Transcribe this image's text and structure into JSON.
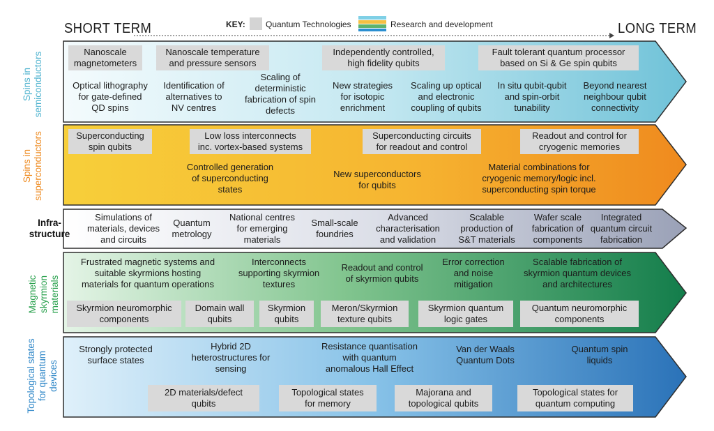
{
  "header": {
    "short_term": "SHORT TERM",
    "long_term": "LONG TERM",
    "key_label": "KEY:",
    "key_quantum": "Quantum Technologies",
    "key_research": "Research and development"
  },
  "colors": {
    "semi": "#7ec9dc",
    "super": "#f39c1e",
    "infra": "#a6acc0",
    "skyr": "#1f8f56",
    "topo": "#2f7fc4",
    "box": "#d9d9d9"
  },
  "rows": {
    "semiconductors": {
      "label": "Spins in\nsemiconductors",
      "items": [
        "Nanoscale\nmagnetometers",
        "Nanoscale temperature\nand pressure sensors",
        "Independently controlled,\nhigh fidelity qubits",
        "Fault tolerant quantum processor\nbased on Si & Ge spin qubits",
        "Optical lithography\nfor gate-defined\nQD spins",
        "Identification of\nalternatives to\nNV centres",
        "Scaling of\ndeterministic\nfabrication of spin\ndefects",
        "New strategies\nfor isotopic\nenrichment",
        "Scaling up optical\nand electronic\ncoupling of qubits",
        "In situ qubit-qubit\nand spin-orbit\ntunability",
        "Beyond nearest\nneighbour qubit\nconnectivity"
      ]
    },
    "superconductors": {
      "label": "Spins in\nsuperconductors",
      "items": [
        "Superconducting\nspin qubits",
        "Low loss interconnects\ninc. vortex-based systems",
        "Superconducting circuits\nfor readout and control",
        "Readout and control for\ncryogenic memories",
        "Controlled generation\nof superconducting\nstates",
        "New superconductors\nfor qubits",
        "Material combinations for\ncryogenic memory/logic incl.\nsuperconducting spin torque"
      ]
    },
    "infrastructure": {
      "label": "Infra-\nstructure",
      "items": [
        "Simulations of\nmaterials, devices\nand circuits",
        "Quantum\nmetrology",
        "National centres\nfor emerging\nmaterials",
        "Small-scale\nfoundries",
        "Advanced\ncharacterisation\nand validation",
        "Scalable\nproduction of\nS&T materials",
        "Wafer scale\nfabrication of\ncomponents",
        "Integrated\nquantum circuit\nfabrication"
      ]
    },
    "skyrmion": {
      "label": "Magnetic\nskyrmion\nmaterials",
      "items": [
        "Frustrated magnetic systems and\nsuitable skyrmions hosting\nmaterials for quantum operations",
        "Interconnects\nsupporting skyrmion\ntextures",
        "Readout and control\nof skyrmion qubits",
        "Error correction\nand noise\nmitigation",
        "Scalable fabrication of\nskyrmion quantum devices\nand architectures",
        "Skyrmion neuromorphic\ncomponents",
        "Domain wall\nqubits",
        "Skyrmion\nqubits",
        "Meron/Skyrmion\ntexture qubits",
        "Skyrmion quantum\nlogic gates",
        "Quantum neuromorphic\ncomponents"
      ]
    },
    "topological": {
      "label": "Topological states\nfor quantum\ndevices",
      "items": [
        "Strongly protected\nsurface states",
        "Hybrid 2D\nheterostructures for\nsensing",
        "Resistance quantisation\nwith quantum\nanomalous Hall Effect",
        "Van der Waals\nQuantum Dots",
        "Quantum spin\nliquids",
        "2D materials/defect\nqubits",
        "Topological states\nfor memory",
        "Majorana and\ntopological qubits",
        "Topological states for\nquantum computing"
      ]
    }
  }
}
